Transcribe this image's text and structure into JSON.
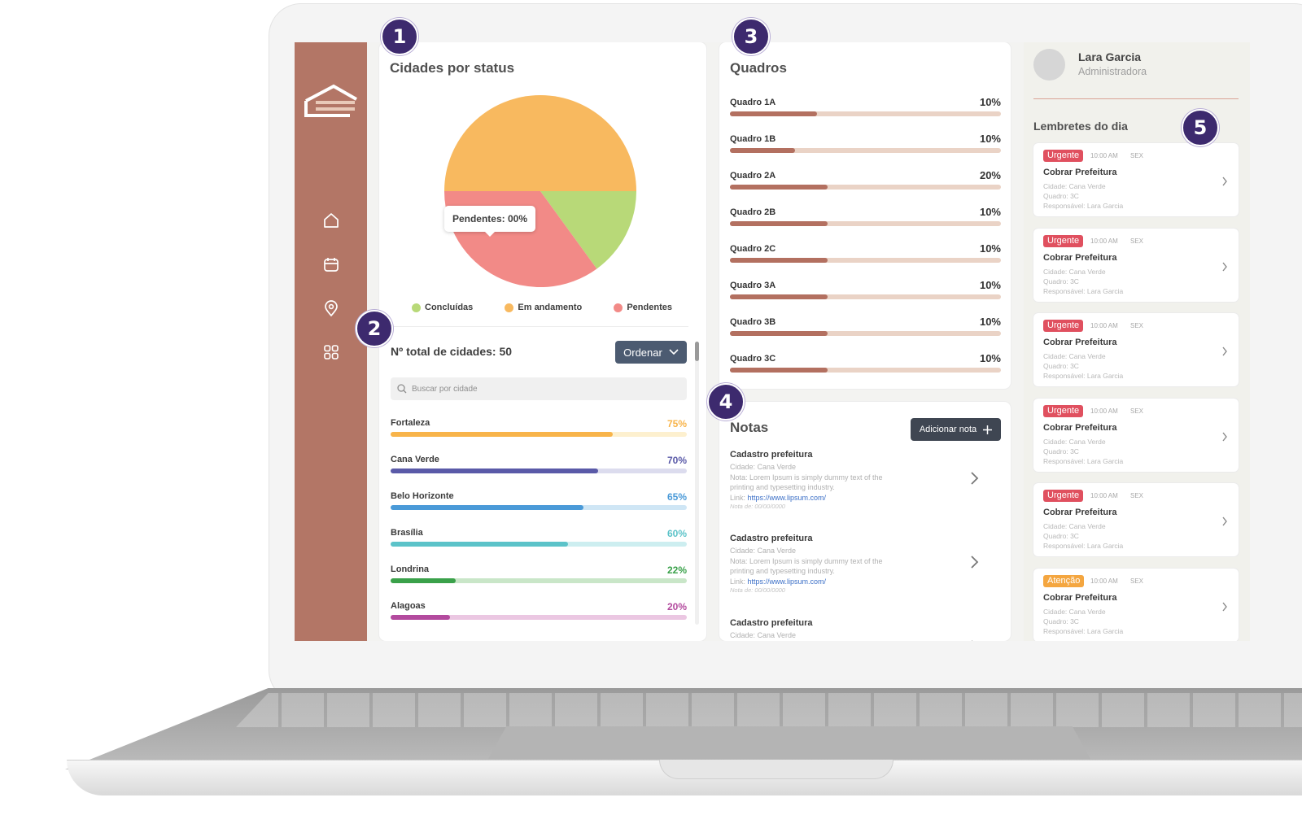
{
  "cities_status": {
    "title": "Cidades por status",
    "tooltip": "Pendentes: 00%",
    "legend": [
      {
        "label": "Concluídas",
        "color": "#b8d978"
      },
      {
        "label": "Em andamento",
        "color": "#f8b95f"
      },
      {
        "label": "Pendentes",
        "color": "#f28a87"
      }
    ],
    "pie_shares": {
      "Em andamento": 0.5,
      "Pendentes": 0.3,
      "Concluídas": 0.2
    }
  },
  "cities_list": {
    "total_label": "Nº total de cidades: 50",
    "order_button": "Ordenar",
    "search_placeholder": "Buscar por cidade",
    "rows": [
      {
        "name": "Fortaleza",
        "pct": "75%",
        "value": 75,
        "color": "#f8b44a",
        "track": "#fdf0cf"
      },
      {
        "name": "Cana Verde",
        "pct": "70%",
        "value": 70,
        "color": "#5a5aa8",
        "track": "#dcdcee"
      },
      {
        "name": "Belo Horizonte",
        "pct": "65%",
        "value": 65,
        "color": "#4a9ad8",
        "track": "#cfe6f5"
      },
      {
        "name": "Brasília",
        "pct": "60%",
        "value": 60,
        "color": "#5cc3c9",
        "track": "#cdeef0"
      },
      {
        "name": "Londrina",
        "pct": "22%",
        "value": 22,
        "color": "#3aa14a",
        "track": "#c9e6c8"
      },
      {
        "name": "Alagoas",
        "pct": "20%",
        "value": 20,
        "color": "#b34a9e",
        "track": "#ebc7e2"
      }
    ]
  },
  "quadros": {
    "title": "Quadros",
    "rows": [
      {
        "name": "Quadro 1A",
        "pct": "10%",
        "value": 0.32
      },
      {
        "name": "Quadro 1B",
        "pct": "10%",
        "value": 0.24
      },
      {
        "name": "Quadro 2A",
        "pct": "20%",
        "value": 0.36
      },
      {
        "name": "Quadro 2B",
        "pct": "10%",
        "value": 0.36
      },
      {
        "name": "Quadro 2C",
        "pct": "10%",
        "value": 0.36
      },
      {
        "name": "Quadro 3A",
        "pct": "10%",
        "value": 0.36
      },
      {
        "name": "Quadro 3B",
        "pct": "10%",
        "value": 0.36
      },
      {
        "name": "Quadro 3C",
        "pct": "10%",
        "value": 0.36
      }
    ]
  },
  "notas": {
    "title": "Notas",
    "add_button": "Adicionar nota",
    "items": [
      {
        "title": "Cadastro prefeitura",
        "city": "Cidade: Cana Verde",
        "note1": "Nota: Lorem Ipsum is simply dummy text of the",
        "note2": "printing and typesetting industry.",
        "link_label": "Link:",
        "link": "https://www.lipsum.com/",
        "date": "Nota de: 00/00/0000"
      },
      {
        "title": "Cadastro prefeitura",
        "city": "Cidade: Cana Verde",
        "note1": "Nota: Lorem Ipsum is simply dummy text of the",
        "note2": "printing and typesetting industry.",
        "link_label": "Link:",
        "link": "https://www.lipsum.com/",
        "date": "Nota de: 00/00/0000"
      },
      {
        "title": "Cadastro prefeitura",
        "city": "Cidade: Cana Verde"
      }
    ]
  },
  "user": {
    "name": "Lara Garcia",
    "role": "Administradora"
  },
  "reminders": {
    "title": "Lembretes do dia",
    "items": [
      {
        "badge": "Urgente",
        "badge_color": "#e0505f",
        "time": "10:00 AM",
        "day": "SEX",
        "title": "Cobrar Prefeitura",
        "city": "Cidade: Cana Verde",
        "quadro": "Quadro: 3C",
        "owner": "Responsável: Lara Garcia"
      },
      {
        "badge": "Urgente",
        "badge_color": "#e0505f",
        "time": "10:00 AM",
        "day": "SEX",
        "title": "Cobrar Prefeitura",
        "city": "Cidade: Cana Verde",
        "quadro": "Quadro: 3C",
        "owner": "Responsável: Lara Garcia"
      },
      {
        "badge": "Urgente",
        "badge_color": "#e0505f",
        "time": "10:00 AM",
        "day": "SEX",
        "title": "Cobrar Prefeitura",
        "city": "Cidade: Cana Verde",
        "quadro": "Quadro: 3C",
        "owner": "Responsável: Lara Garcia"
      },
      {
        "badge": "Urgente",
        "badge_color": "#e0505f",
        "time": "10:00 AM",
        "day": "SEX",
        "title": "Cobrar Prefeitura",
        "city": "Cidade: Cana Verde",
        "quadro": "Quadro: 3C",
        "owner": "Responsável: Lara Garcia"
      },
      {
        "badge": "Urgente",
        "badge_color": "#e0505f",
        "time": "10:00 AM",
        "day": "SEX",
        "title": "Cobrar Prefeitura",
        "city": "Cidade: Cana Verde",
        "quadro": "Quadro: 3C",
        "owner": "Responsável: Lara Garcia"
      },
      {
        "badge": "Atenção",
        "badge_color": "#f4a640",
        "time": "10:00 AM",
        "day": "SEX",
        "title": "Cobrar Prefeitura",
        "city": "Cidade: Cana Verde",
        "quadro": "Quadro: 3C",
        "owner": "Responsável: Lara Garcia"
      }
    ]
  },
  "callouts": [
    "1",
    "2",
    "3",
    "4",
    "5"
  ],
  "icons": [
    "logo",
    "home-icon",
    "calendar-icon",
    "location-pin-icon",
    "grid-icon",
    "search-icon",
    "chevron-down-icon",
    "plus-icon",
    "chevron-right-icon"
  ],
  "colors": {
    "sidebar": "#b37666",
    "callout": "#3d2a6e",
    "quadro_bar": "#b37060"
  }
}
